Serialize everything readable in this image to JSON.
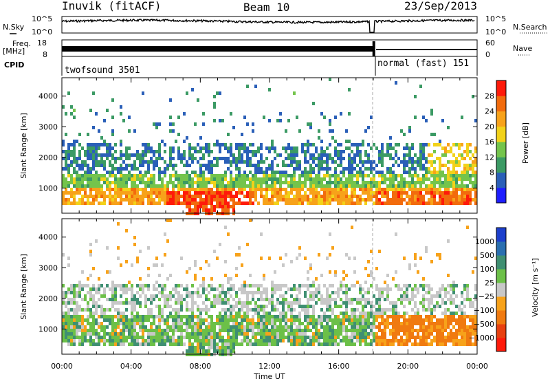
{
  "header": {
    "site": "Inuvik (fitACF)",
    "beam": "Beam 10",
    "date": "23/Sep/2013"
  },
  "side_labels": {
    "nsky": "N.Sky",
    "freq": "Freq.",
    "freq_unit": "[MHz]",
    "cpid": "CPID",
    "nsearch": "N.Search",
    "nave": "Nave"
  },
  "strip_ticks": {
    "noise_left": [
      "10^5",
      "10^0"
    ],
    "noise_right": [
      "10^5",
      "10^0"
    ],
    "freq_left": [
      "18",
      "8"
    ],
    "nave_right": [
      "60",
      "0"
    ]
  },
  "cpid_modes": [
    {
      "label": "twofsound 3501",
      "start_hour": 0,
      "end_hour": 18
    },
    {
      "label": "normal (fast) 151",
      "start_hour": 18,
      "end_hour": 24
    }
  ],
  "chart_data": [
    {
      "type": "heatmap",
      "name": "power",
      "xlabel": "Time UT",
      "ylabel": "Slant Range [km]",
      "xlim": [
        0,
        24
      ],
      "ylim": [
        180,
        4600
      ],
      "yticks": [
        "1000",
        "2000",
        "3000",
        "4000"
      ],
      "colorbar_label": "Power [dB]",
      "colorbar_ticks": [
        "4",
        "8",
        "12",
        "16",
        "20",
        "24",
        "28"
      ],
      "colors": [
        "#1e1eff",
        "#2a5fb8",
        "#3b9a64",
        "#74c44c",
        "#f2d21a",
        "#f7a21a",
        "#f26b0d",
        "#ff1a0a"
      ]
    },
    {
      "type": "heatmap",
      "name": "velocity",
      "xlabel": "Time UT",
      "ylabel": "Slant Range [km]",
      "xlim": [
        0,
        24
      ],
      "ylim": [
        180,
        4600
      ],
      "yticks": [
        "1000",
        "2000",
        "3000",
        "4000"
      ],
      "colorbar_label": "Velocity [m s⁻¹]",
      "colorbar_ticks": [
        "1000",
        "500",
        "100",
        "25",
        "−25",
        "−100",
        "−500",
        "−1000"
      ],
      "colors": [
        "#1c3fcc",
        "#2a6fb0",
        "#3f8f72",
        "#6cc048",
        "#c8c8c8",
        "#f7a21a",
        "#f07a10",
        "#e84010",
        "#ff1a0a"
      ]
    }
  ],
  "time_ticks": [
    "00:00",
    "04:00",
    "08:00",
    "12:00",
    "16:00",
    "20:00",
    "00:00"
  ],
  "time_label": "Time UT"
}
